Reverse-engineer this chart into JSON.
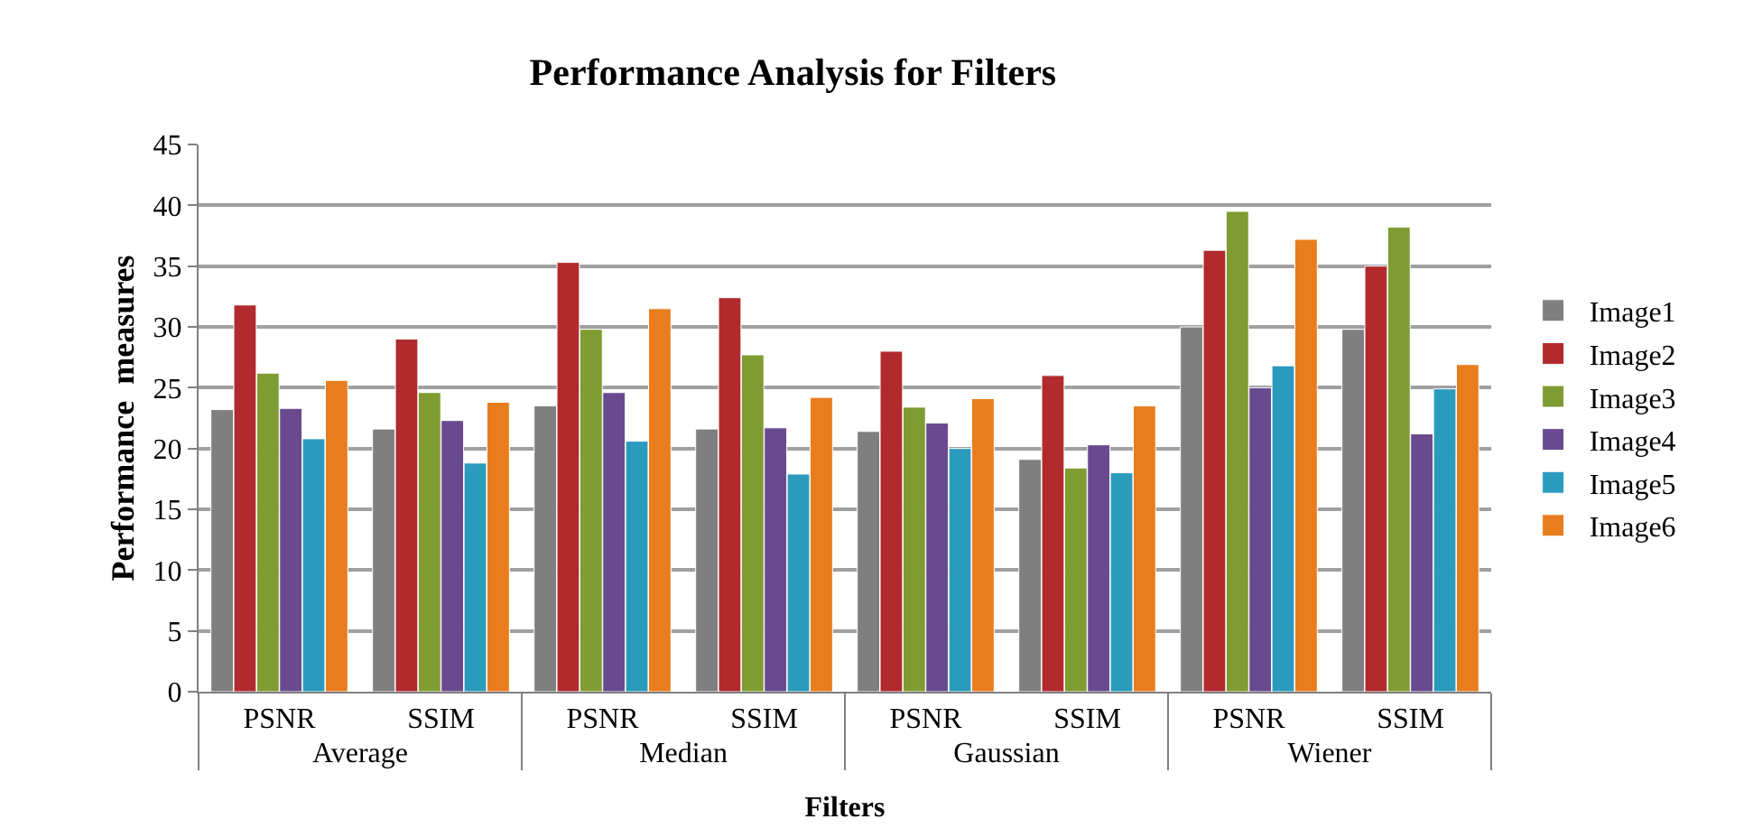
{
  "chart_data": {
    "type": "bar",
    "title": "Performance Analysis for Filters",
    "xlabel": "Filters",
    "ylabel": "Performance  measures",
    "categories": [
      "PSNR",
      "SSIM",
      "PSNR",
      "SSIM",
      "PSNR",
      "SSIM",
      "PSNR",
      "SSIM"
    ],
    "annotations": [
      "Average",
      "Median",
      "Gaussian",
      "Wiener"
    ],
    "ylim": [
      0,
      45
    ],
    "yticks": [
      0,
      5,
      10,
      15,
      20,
      25,
      30,
      35,
      40,
      45
    ],
    "grid": "y",
    "legend": "right",
    "series": [
      {
        "name": "Image1",
        "color": "#7f7f7f",
        "values": [
          23.2,
          21.6,
          23.5,
          21.6,
          21.4,
          19.1,
          30,
          29.8
        ]
      },
      {
        "name": "Image2",
        "color": "#b02a2e",
        "values": [
          31.8,
          29,
          35.3,
          32.4,
          28,
          26,
          36.3,
          35
        ]
      },
      {
        "name": "Image3",
        "color": "#7f9c32",
        "values": [
          26.2,
          24.6,
          29.8,
          27.7,
          23.4,
          18.4,
          39.5,
          38.2
        ]
      },
      {
        "name": "Image4",
        "color": "#6a4a8f",
        "values": [
          23.3,
          22.3,
          24.6,
          21.7,
          22.1,
          20.3,
          25,
          21.2
        ]
      },
      {
        "name": "Image5",
        "color": "#2b9bbd",
        "values": [
          20.8,
          18.8,
          20.6,
          17.9,
          20,
          18,
          26.8,
          24.9
        ]
      },
      {
        "name": "Image6",
        "color": "#e87d1e",
        "values": [
          25.6,
          23.8,
          31.5,
          24.2,
          24.1,
          23.5,
          37.2,
          26.9
        ]
      }
    ]
  }
}
